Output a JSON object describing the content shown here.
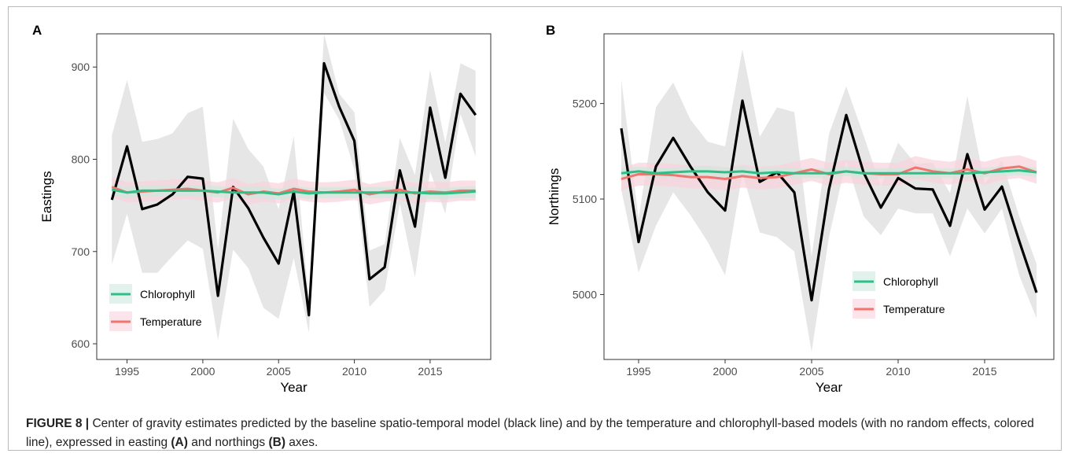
{
  "figure": {
    "caption_label": "FIGURE 8 |",
    "caption_part1": " Center of gravity estimates predicted by the baseline spatio-temporal model (black line) and by the temperature and chlorophyll-based models (with no random effects, colored line), expressed in easting ",
    "caption_a": "(A)",
    "caption_part2": " and northings ",
    "caption_b": "(B)",
    "caption_part3": " axes."
  },
  "colors": {
    "baseline": "#000000",
    "chlorophyll": "#2dbf85",
    "temperature": "#f0756e",
    "ribbon_baseline": "#e6e6e6",
    "ribbon_temperature": "#f9d2dc",
    "ribbon_chlorophyll": "#cceadd"
  },
  "chart_data": [
    {
      "type": "line",
      "panel_label": "A",
      "xlabel": "Year",
      "ylabel": "Eastings",
      "xlim": [
        1993,
        2019
      ],
      "ylim": [
        583,
        936
      ],
      "xticks": [
        1995,
        2000,
        2005,
        2010,
        2015
      ],
      "yticks": [
        600,
        700,
        800,
        900
      ],
      "grid": false,
      "legend_position": "bottom-left",
      "x": [
        1994,
        1995,
        1996,
        1997,
        1998,
        1999,
        2000,
        2001,
        2002,
        2003,
        2004,
        2005,
        2006,
        2007,
        2008,
        2009,
        2010,
        2011,
        2012,
        2013,
        2014,
        2015,
        2016,
        2017,
        2018
      ],
      "baseline": {
        "values": [
          756,
          814,
          746,
          751,
          762,
          781,
          779,
          652,
          770,
          747,
          715,
          687,
          765,
          631,
          904,
          857,
          820,
          670,
          683,
          788,
          727,
          856,
          780,
          871,
          848
        ],
        "lower": [
          686,
          741,
          677,
          677,
          695,
          712,
          703,
          604,
          702,
          682,
          639,
          627,
          693,
          612,
          872,
          843,
          789,
          640,
          658,
          752,
          672,
          787,
          741,
          849,
          803
        ],
        "upper": [
          826,
          886,
          819,
          822,
          828,
          850,
          857,
          702,
          844,
          811,
          792,
          746,
          825,
          647,
          936,
          871,
          851,
          701,
          708,
          823,
          783,
          897,
          818,
          904,
          896
        ]
      },
      "series": [
        {
          "name": "Chlorophyll",
          "values": [
            767,
            764,
            766,
            766,
            766,
            766,
            766,
            765,
            764,
            764,
            764,
            762,
            765,
            763,
            764,
            764,
            764,
            764,
            764,
            764,
            764,
            763,
            763,
            764,
            765
          ],
          "band": 6
        },
        {
          "name": "Temperature",
          "values": [
            770,
            764,
            765,
            766,
            767,
            768,
            766,
            764,
            769,
            762,
            765,
            763,
            768,
            765,
            764,
            765,
            767,
            762,
            765,
            767,
            763,
            765,
            764,
            766,
            766
          ],
          "band": 11
        }
      ]
    },
    {
      "type": "line",
      "panel_label": "B",
      "xlabel": "Year",
      "ylabel": "Northings",
      "xlim": [
        1993,
        2019
      ],
      "ylim": [
        4932,
        5273
      ],
      "xticks": [
        1995,
        2000,
        2005,
        2010,
        2015
      ],
      "yticks": [
        5000,
        5100,
        5200
      ],
      "grid": false,
      "legend_position": "bottom-right",
      "x": [
        1994,
        1995,
        1996,
        1997,
        1998,
        1999,
        2000,
        2001,
        2002,
        2003,
        2004,
        2005,
        2006,
        2007,
        2008,
        2009,
        2010,
        2011,
        2012,
        2013,
        2014,
        2015,
        2016,
        2017,
        2018
      ],
      "baseline": {
        "values": [
          5174,
          5055,
          5134,
          5164,
          5134,
          5107,
          5088,
          5203,
          5118,
          5128,
          5107,
          4994,
          5110,
          5188,
          5128,
          5091,
          5122,
          5111,
          5110,
          5072,
          5147,
          5089,
          5113,
          5056,
          5002
        ],
        "lower": [
          5110,
          5023,
          5072,
          5107,
          5083,
          5055,
          5020,
          5127,
          5065,
          5060,
          5045,
          4940,
          5060,
          5140,
          5082,
          5062,
          5090,
          5085,
          5085,
          5040,
          5090,
          5064,
          5090,
          5020,
          4975
        ],
        "upper": [
          5225,
          5080,
          5196,
          5222,
          5183,
          5160,
          5155,
          5257,
          5165,
          5196,
          5191,
          5040,
          5168,
          5218,
          5167,
          5113,
          5159,
          5137,
          5138,
          5106,
          5208,
          5116,
          5140,
          5082,
          5032
        ]
      },
      "series": [
        {
          "name": "Chlorophyll",
          "values": [
            5127,
            5129,
            5127,
            5128,
            5129,
            5129,
            5128,
            5129,
            5127,
            5128,
            5127,
            5127,
            5127,
            5129,
            5127,
            5127,
            5127,
            5127,
            5127,
            5127,
            5127,
            5128,
            5129,
            5130,
            5128
          ],
          "band": 5
        },
        {
          "name": "Temperature",
          "values": [
            5121,
            5126,
            5126,
            5125,
            5123,
            5123,
            5121,
            5124,
            5122,
            5123,
            5127,
            5131,
            5126,
            5129,
            5127,
            5126,
            5126,
            5133,
            5129,
            5127,
            5131,
            5127,
            5132,
            5134,
            5128
          ],
          "band": 12
        }
      ]
    }
  ]
}
